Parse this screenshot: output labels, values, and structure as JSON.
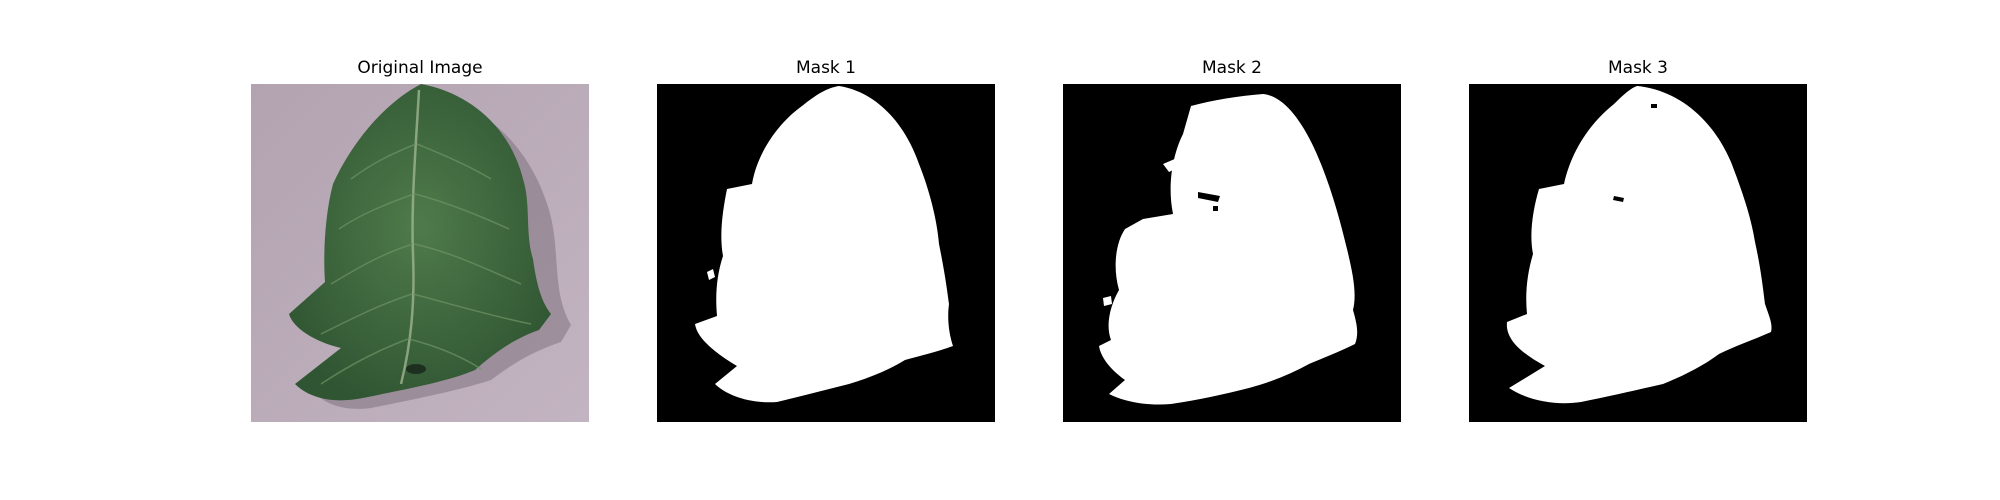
{
  "panels": [
    {
      "title": "Original Image"
    },
    {
      "title": "Mask 1"
    },
    {
      "title": "Mask 2"
    },
    {
      "title": "Mask 3"
    }
  ],
  "colors": {
    "background_surface": "#b9a9b6",
    "leaf_green": "#3f6b3e",
    "leaf_dark": "#2a4b2c",
    "mask_foreground": "#ffffff",
    "mask_background": "#000000"
  }
}
